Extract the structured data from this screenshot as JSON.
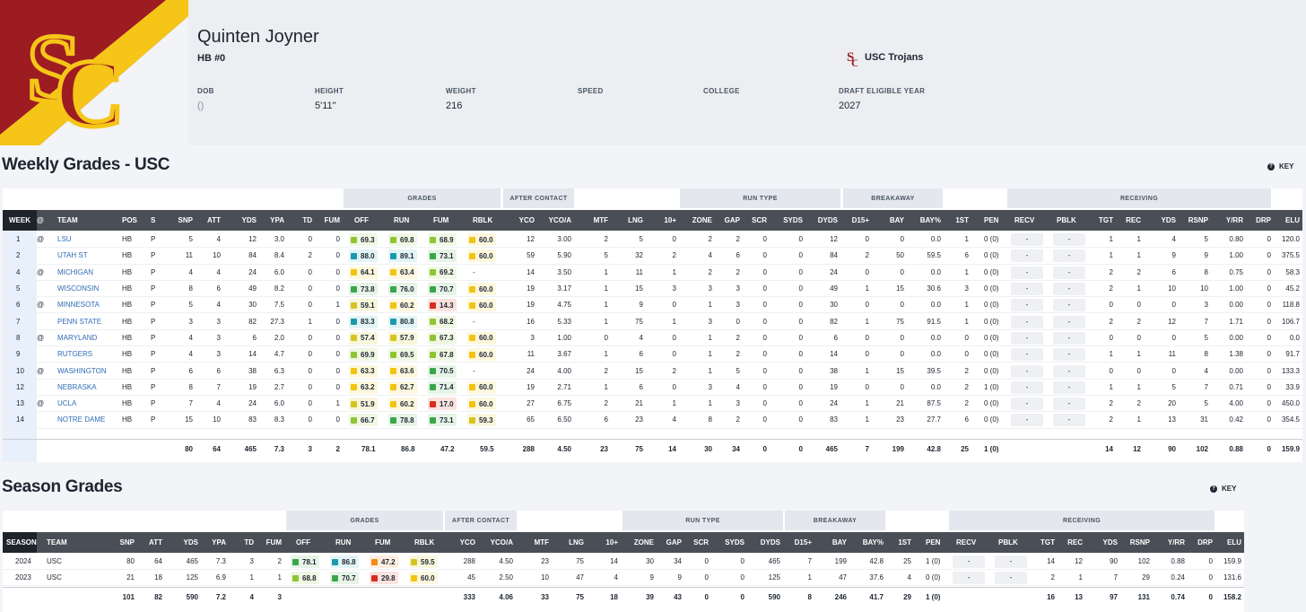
{
  "player": {
    "name": "Quinten Joyner",
    "position": "HB #0",
    "dob_label": "DOB",
    "dob": "()",
    "height_label": "HEIGHT",
    "height": "5'11\"",
    "weight_label": "WEIGHT",
    "weight": "216",
    "speed_label": "SPEED",
    "college_label": "COLLEGE",
    "draft_label": "DRAFT ELIGIBLE YEAR",
    "draft": "2027",
    "team": "USC Trojans"
  },
  "colors": {
    "usc_cardinal": "#9d1c22",
    "usc_gold": "#f5c518",
    "header_dark": "#4a4f57"
  },
  "weekly": {
    "title": "Weekly Grades - USC",
    "key_label": "KEY",
    "groups": [
      "GRADES",
      "AFTER CONTACT",
      "RUN TYPE",
      "BREAKAWAY",
      "RECEIVING"
    ],
    "headers": [
      "WEEK",
      "@",
      "TEAM",
      "POS",
      "S",
      "SNP",
      "ATT",
      "YDS",
      "YPA",
      "TD",
      "FUM",
      "OFF",
      "RUN",
      "FUM",
      "RBLK",
      "YCO",
      "YCO/A",
      "MTF",
      "LNG",
      "10+",
      "ZONE",
      "GAP",
      "SCR",
      "SYDS",
      "DYDS",
      "D15+",
      "BAY",
      "BAY%",
      "1ST",
      "PEN",
      "RECV",
      "PBLK",
      "TGT",
      "REC",
      "YDS",
      "RSNP",
      "Y/RR",
      "DRP",
      "ELU"
    ],
    "rows": [
      {
        "week": "1",
        "at": "@",
        "team": "LSU",
        "pos": "HB",
        "s": "P",
        "snp": "5",
        "att": "4",
        "yds": "12",
        "ypa": "3.0",
        "td": "0",
        "fum": "0",
        "off": "69.3",
        "run": "69.8",
        "fumg": "68.9",
        "rblk": "60.0",
        "yco": "12",
        "ycoa": "3.00",
        "mtf": "2",
        "lng": "5",
        "ten": "0",
        "zone": "2",
        "gap": "2",
        "scr": "0",
        "syds": "0",
        "dyds": "12",
        "d15": "0",
        "bay": "0",
        "bayp": "0.0",
        "first": "1",
        "pen": "0 (0)",
        "recv": "-",
        "pblk": "-",
        "tgt": "1",
        "rec": "1",
        "ryds": "4",
        "rsnp": "5",
        "yrr": "0.80",
        "drp": "0",
        "elu": "120.0"
      },
      {
        "week": "2",
        "at": "",
        "team": "UTAH ST",
        "pos": "HB",
        "s": "P",
        "snp": "11",
        "att": "10",
        "yds": "84",
        "ypa": "8.4",
        "td": "2",
        "fum": "0",
        "off": "88.0",
        "run": "89.1",
        "fumg": "73.1",
        "rblk": "60.0",
        "yco": "59",
        "ycoa": "5.90",
        "mtf": "5",
        "lng": "32",
        "ten": "2",
        "zone": "4",
        "gap": "6",
        "scr": "0",
        "syds": "0",
        "dyds": "84",
        "d15": "2",
        "bay": "50",
        "bayp": "59.5",
        "first": "6",
        "pen": "0 (0)",
        "recv": "-",
        "pblk": "-",
        "tgt": "1",
        "rec": "1",
        "ryds": "9",
        "rsnp": "9",
        "yrr": "1.00",
        "drp": "0",
        "elu": "375.5"
      },
      {
        "week": "4",
        "at": "@",
        "team": "MICHIGAN",
        "pos": "HB",
        "s": "P",
        "snp": "4",
        "att": "4",
        "yds": "24",
        "ypa": "6.0",
        "td": "0",
        "fum": "0",
        "off": "64.1",
        "run": "63.4",
        "fumg": "69.2",
        "rblk": "-",
        "yco": "14",
        "ycoa": "3.50",
        "mtf": "1",
        "lng": "11",
        "ten": "1",
        "zone": "2",
        "gap": "2",
        "scr": "0",
        "syds": "0",
        "dyds": "24",
        "d15": "0",
        "bay": "0",
        "bayp": "0.0",
        "first": "1",
        "pen": "0 (0)",
        "recv": "-",
        "pblk": "-",
        "tgt": "2",
        "rec": "2",
        "ryds": "6",
        "rsnp": "8",
        "yrr": "0.75",
        "drp": "0",
        "elu": "58.3"
      },
      {
        "week": "5",
        "at": "",
        "team": "WISCONSIN",
        "pos": "HB",
        "s": "P",
        "snp": "8",
        "att": "6",
        "yds": "49",
        "ypa": "8.2",
        "td": "0",
        "fum": "0",
        "off": "73.8",
        "run": "76.0",
        "fumg": "70.7",
        "rblk": "60.0",
        "yco": "19",
        "ycoa": "3.17",
        "mtf": "1",
        "lng": "15",
        "ten": "3",
        "zone": "3",
        "gap": "3",
        "scr": "0",
        "syds": "0",
        "dyds": "49",
        "d15": "1",
        "bay": "15",
        "bayp": "30.6",
        "first": "3",
        "pen": "0 (0)",
        "recv": "-",
        "pblk": "-",
        "tgt": "2",
        "rec": "1",
        "ryds": "10",
        "rsnp": "10",
        "yrr": "1.00",
        "drp": "0",
        "elu": "45.2"
      },
      {
        "week": "6",
        "at": "@",
        "team": "MINNESOTA",
        "pos": "HB",
        "s": "P",
        "snp": "5",
        "att": "4",
        "yds": "30",
        "ypa": "7.5",
        "td": "0",
        "fum": "1",
        "off": "59.1",
        "run": "60.2",
        "fumg": "14.3",
        "rblk": "60.0",
        "yco": "19",
        "ycoa": "4.75",
        "mtf": "1",
        "lng": "9",
        "ten": "0",
        "zone": "1",
        "gap": "3",
        "scr": "0",
        "syds": "0",
        "dyds": "30",
        "d15": "0",
        "bay": "0",
        "bayp": "0.0",
        "first": "1",
        "pen": "0 (0)",
        "recv": "-",
        "pblk": "-",
        "tgt": "0",
        "rec": "0",
        "ryds": "0",
        "rsnp": "3",
        "yrr": "0.00",
        "drp": "0",
        "elu": "118.8"
      },
      {
        "week": "7",
        "at": "",
        "team": "PENN STATE",
        "pos": "HB",
        "s": "P",
        "snp": "3",
        "att": "3",
        "yds": "82",
        "ypa": "27.3",
        "td": "1",
        "fum": "0",
        "off": "83.3",
        "run": "80.8",
        "fumg": "68.2",
        "rblk": "-",
        "yco": "16",
        "ycoa": "5.33",
        "mtf": "1",
        "lng": "75",
        "ten": "1",
        "zone": "3",
        "gap": "0",
        "scr": "0",
        "syds": "0",
        "dyds": "82",
        "d15": "1",
        "bay": "75",
        "bayp": "91.5",
        "first": "1",
        "pen": "0 (0)",
        "recv": "-",
        "pblk": "-",
        "tgt": "2",
        "rec": "2",
        "ryds": "12",
        "rsnp": "7",
        "yrr": "1.71",
        "drp": "0",
        "elu": "106.7"
      },
      {
        "week": "8",
        "at": "@",
        "team": "MARYLAND",
        "pos": "HB",
        "s": "P",
        "snp": "4",
        "att": "3",
        "yds": "6",
        "ypa": "2.0",
        "td": "0",
        "fum": "0",
        "off": "57.4",
        "run": "57.9",
        "fumg": "67.3",
        "rblk": "60.0",
        "yco": "3",
        "ycoa": "1.00",
        "mtf": "0",
        "lng": "4",
        "ten": "0",
        "zone": "1",
        "gap": "2",
        "scr": "0",
        "syds": "0",
        "dyds": "6",
        "d15": "0",
        "bay": "0",
        "bayp": "0.0",
        "first": "0",
        "pen": "0 (0)",
        "recv": "-",
        "pblk": "-",
        "tgt": "0",
        "rec": "0",
        "ryds": "0",
        "rsnp": "5",
        "yrr": "0.00",
        "drp": "0",
        "elu": "0.0"
      },
      {
        "week": "9",
        "at": "",
        "team": "RUTGERS",
        "pos": "HB",
        "s": "P",
        "snp": "4",
        "att": "3",
        "yds": "14",
        "ypa": "4.7",
        "td": "0",
        "fum": "0",
        "off": "69.9",
        "run": "69.5",
        "fumg": "67.8",
        "rblk": "60.0",
        "yco": "11",
        "ycoa": "3.67",
        "mtf": "1",
        "lng": "6",
        "ten": "0",
        "zone": "1",
        "gap": "2",
        "scr": "0",
        "syds": "0",
        "dyds": "14",
        "d15": "0",
        "bay": "0",
        "bayp": "0.0",
        "first": "0",
        "pen": "0 (0)",
        "recv": "-",
        "pblk": "-",
        "tgt": "1",
        "rec": "1",
        "ryds": "11",
        "rsnp": "8",
        "yrr": "1.38",
        "drp": "0",
        "elu": "91.7"
      },
      {
        "week": "10",
        "at": "@",
        "team": "WASHINGTON",
        "pos": "HB",
        "s": "P",
        "snp": "6",
        "att": "6",
        "yds": "38",
        "ypa": "6.3",
        "td": "0",
        "fum": "0",
        "off": "63.3",
        "run": "63.6",
        "fumg": "70.5",
        "rblk": "-",
        "yco": "24",
        "ycoa": "4.00",
        "mtf": "2",
        "lng": "15",
        "ten": "2",
        "zone": "1",
        "gap": "5",
        "scr": "0",
        "syds": "0",
        "dyds": "38",
        "d15": "1",
        "bay": "15",
        "bayp": "39.5",
        "first": "2",
        "pen": "0 (0)",
        "recv": "-",
        "pblk": "-",
        "tgt": "0",
        "rec": "0",
        "ryds": "0",
        "rsnp": "4",
        "yrr": "0.00",
        "drp": "0",
        "elu": "133.3"
      },
      {
        "week": "12",
        "at": "",
        "team": "NEBRASKA",
        "pos": "HB",
        "s": "P",
        "snp": "8",
        "att": "7",
        "yds": "19",
        "ypa": "2.7",
        "td": "0",
        "fum": "0",
        "off": "63.2",
        "run": "62.7",
        "fumg": "71.4",
        "rblk": "60.0",
        "yco": "19",
        "ycoa": "2.71",
        "mtf": "1",
        "lng": "6",
        "ten": "0",
        "zone": "3",
        "gap": "4",
        "scr": "0",
        "syds": "0",
        "dyds": "19",
        "d15": "0",
        "bay": "0",
        "bayp": "0.0",
        "first": "2",
        "pen": "1 (0)",
        "recv": "-",
        "pblk": "-",
        "tgt": "1",
        "rec": "1",
        "ryds": "5",
        "rsnp": "7",
        "yrr": "0.71",
        "drp": "0",
        "elu": "33.9"
      },
      {
        "week": "13",
        "at": "@",
        "team": "UCLA",
        "pos": "HB",
        "s": "P",
        "snp": "7",
        "att": "4",
        "yds": "24",
        "ypa": "6.0",
        "td": "0",
        "fum": "1",
        "off": "51.9",
        "run": "60.2",
        "fumg": "17.0",
        "rblk": "60.0",
        "yco": "27",
        "ycoa": "6.75",
        "mtf": "2",
        "lng": "21",
        "ten": "1",
        "zone": "1",
        "gap": "3",
        "scr": "0",
        "syds": "0",
        "dyds": "24",
        "d15": "1",
        "bay": "21",
        "bayp": "87.5",
        "first": "2",
        "pen": "0 (0)",
        "recv": "-",
        "pblk": "-",
        "tgt": "2",
        "rec": "2",
        "ryds": "20",
        "rsnp": "5",
        "yrr": "4.00",
        "drp": "0",
        "elu": "450.0"
      },
      {
        "week": "14",
        "at": "",
        "team": "NOTRE DAME",
        "pos": "HB",
        "s": "P",
        "snp": "15",
        "att": "10",
        "yds": "83",
        "ypa": "8.3",
        "td": "0",
        "fum": "0",
        "off": "66.7",
        "run": "78.8",
        "fumg": "73.1",
        "rblk": "59.3",
        "yco": "65",
        "ycoa": "6.50",
        "mtf": "6",
        "lng": "23",
        "ten": "4",
        "zone": "8",
        "gap": "2",
        "scr": "0",
        "syds": "0",
        "dyds": "83",
        "d15": "1",
        "bay": "23",
        "bayp": "27.7",
        "first": "6",
        "pen": "0 (0)",
        "recv": "-",
        "pblk": "-",
        "tgt": "2",
        "rec": "1",
        "ryds": "13",
        "rsnp": "31",
        "yrr": "0.42",
        "drp": "0",
        "elu": "354.5"
      }
    ],
    "totals": {
      "snp": "80",
      "att": "64",
      "yds": "465",
      "ypa": "7.3",
      "td": "3",
      "fum": "2",
      "off": "78.1",
      "run": "86.8",
      "fumg": "47.2",
      "rblk": "59.5",
      "yco": "288",
      "ycoa": "4.50",
      "mtf": "23",
      "lng": "75",
      "ten": "14",
      "zone": "30",
      "gap": "34",
      "scr": "0",
      "syds": "0",
      "dyds": "465",
      "d15": "7",
      "bay": "199",
      "bayp": "42.8",
      "first": "25",
      "pen": "1 (0)",
      "tgt": "14",
      "rec": "12",
      "ryds": "90",
      "rsnp": "102",
      "yrr": "0.88",
      "drp": "0",
      "elu": "159.9"
    }
  },
  "season": {
    "title": "Season Grades",
    "key_label": "KEY",
    "groups": [
      "GRADES",
      "AFTER CONTACT",
      "RUN TYPE",
      "BREAKAWAY",
      "RECEIVING"
    ],
    "headers": [
      "SEASON",
      "TEAM",
      "SNP",
      "ATT",
      "YDS",
      "YPA",
      "TD",
      "FUM",
      "OFF",
      "RUN",
      "FUM",
      "RBLK",
      "YCO",
      "YCO/A",
      "MTF",
      "LNG",
      "10+",
      "ZONE",
      "GAP",
      "SCR",
      "SYDS",
      "DYDS",
      "D15+",
      "BAY",
      "BAY%",
      "1ST",
      "PEN",
      "RECV",
      "PBLK",
      "TGT",
      "REC",
      "YDS",
      "RSNP",
      "Y/RR",
      "DRP",
      "ELU"
    ],
    "rows": [
      {
        "season": "2024",
        "team": "USC",
        "snp": "80",
        "att": "64",
        "yds": "465",
        "ypa": "7.3",
        "td": "3",
        "fum": "2",
        "off": "78.1",
        "run": "86.8",
        "fumg": "47.2",
        "rblk": "59.5",
        "yco": "288",
        "ycoa": "4.50",
        "mtf": "23",
        "lng": "75",
        "ten": "14",
        "zone": "30",
        "gap": "34",
        "scr": "0",
        "syds": "0",
        "dyds": "465",
        "d15": "7",
        "bay": "199",
        "bayp": "42.8",
        "first": "25",
        "pen": "1 (0)",
        "recv": "-",
        "pblk": "-",
        "tgt": "14",
        "rec": "12",
        "ryds": "90",
        "rsnp": "102",
        "yrr": "0.88",
        "drp": "0",
        "elu": "159.9"
      },
      {
        "season": "2023",
        "team": "USC",
        "snp": "21",
        "att": "18",
        "yds": "125",
        "ypa": "6.9",
        "td": "1",
        "fum": "1",
        "off": "68.8",
        "run": "70.7",
        "fumg": "29.8",
        "rblk": "60.0",
        "yco": "45",
        "ycoa": "2.50",
        "mtf": "10",
        "lng": "47",
        "ten": "4",
        "zone": "9",
        "gap": "9",
        "scr": "0",
        "syds": "0",
        "dyds": "125",
        "d15": "1",
        "bay": "47",
        "bayp": "37.6",
        "first": "4",
        "pen": "0 (0)",
        "recv": "-",
        "pblk": "-",
        "tgt": "2",
        "rec": "1",
        "ryds": "7",
        "rsnp": "29",
        "yrr": "0.24",
        "drp": "0",
        "elu": "131.6"
      }
    ],
    "totals": {
      "snp": "101",
      "att": "82",
      "yds": "590",
      "ypa": "7.2",
      "td": "4",
      "fum": "3",
      "yco": "333",
      "ycoa": "4.06",
      "mtf": "33",
      "lng": "75",
      "ten": "18",
      "zone": "39",
      "gap": "43",
      "scr": "0",
      "syds": "0",
      "dyds": "590",
      "d15": "8",
      "bay": "246",
      "bayp": "41.7",
      "first": "29",
      "pen": "1 (0)",
      "tgt": "16",
      "rec": "13",
      "ryds": "97",
      "rsnp": "131",
      "yrr": "0.74",
      "drp": "0",
      "elu": "158.2"
    }
  }
}
